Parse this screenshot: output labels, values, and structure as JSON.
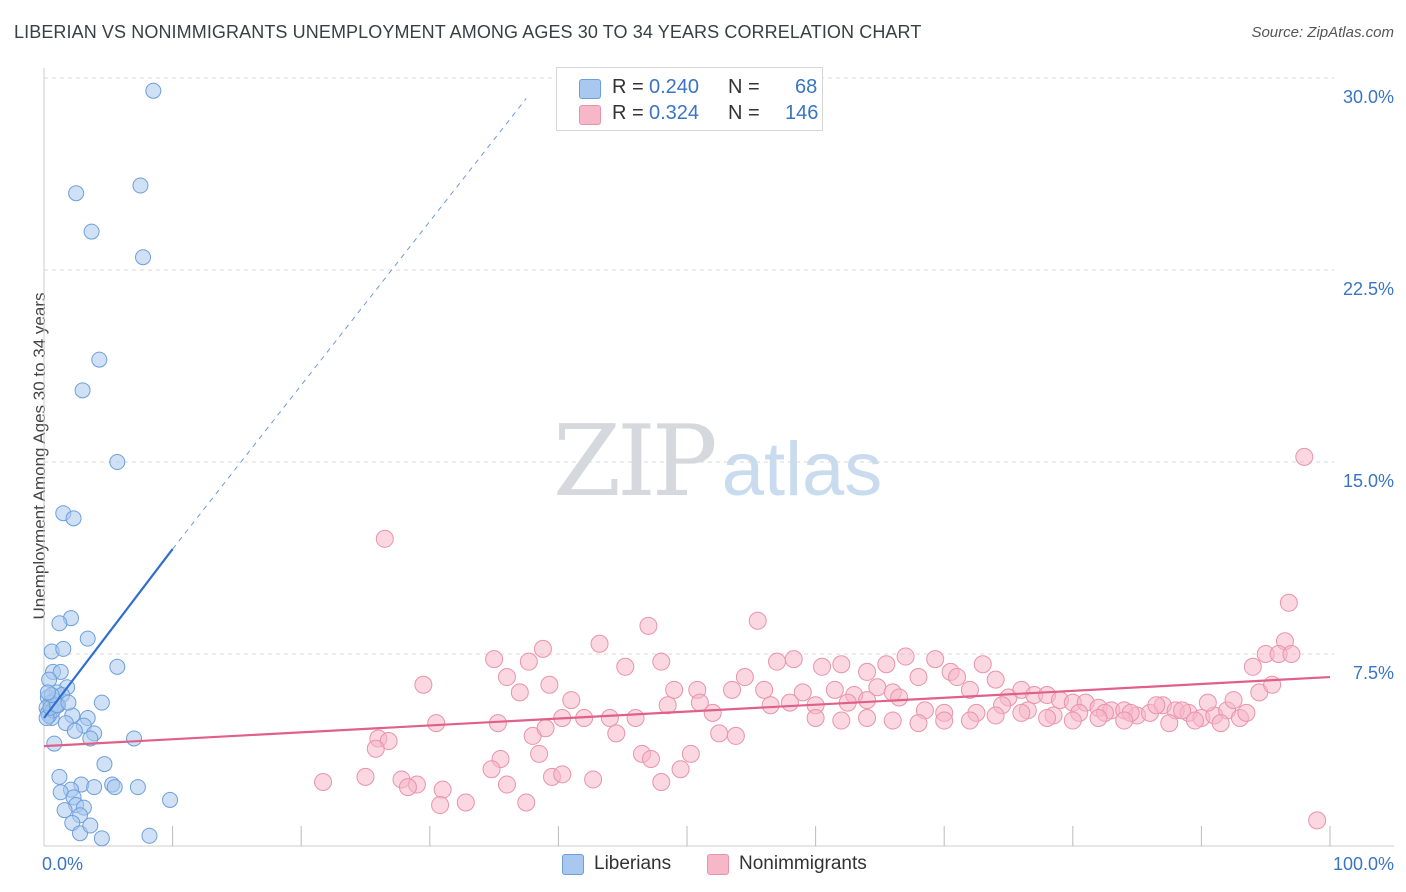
{
  "title": "LIBERIAN VS NONIMMIGRANTS UNEMPLOYMENT AMONG AGES 30 TO 34 YEARS CORRELATION CHART",
  "source": "Source: ZipAtlas.com",
  "watermark": {
    "zip": "ZIP",
    "atlas": "atlas"
  },
  "legend_top": [
    {
      "r_label": "R =",
      "r_value": "0.240",
      "n_label": "N =",
      "n_value": "68",
      "color": "#a9c8ef"
    },
    {
      "r_label": "R =",
      "r_value": "0.324",
      "n_label": "N =",
      "n_value": "146",
      "color": "#f6b7c9"
    }
  ],
  "legend_bottom": [
    {
      "label": "Liberians",
      "color": "#a9c8ef"
    },
    {
      "label": "Nonimmigrants",
      "color": "#f6b7c9"
    }
  ],
  "colors": {
    "blue_fill": "#a9c8ef",
    "blue_edge": "#6d9fdc",
    "blue_line": "#2f6fcf",
    "pink_fill": "#f6b7c9",
    "pink_edge": "#e993ad",
    "pink_line": "#e0608a",
    "value_text": "#3a74c4",
    "grid": "#d9d9d9"
  },
  "chart_data": {
    "type": "scatter",
    "title": "LIBERIAN VS NONIMMIGRANTS UNEMPLOYMENT AMONG AGES 30 TO 34 YEARS CORRELATION CHART",
    "xlabel": "",
    "ylabel": "Unemployment Among Ages 30 to 34 years",
    "xlim": [
      0,
      100
    ],
    "ylim": [
      0,
      30
    ],
    "x_tick_labels": [
      {
        "x": 0,
        "label": "0.0%"
      },
      {
        "x": 100,
        "label": "100.0%"
      }
    ],
    "y_ticks": [
      {
        "y": 7.5,
        "label": "7.5%"
      },
      {
        "y": 15,
        "label": "15.0%"
      },
      {
        "y": 22.5,
        "label": "22.5%"
      },
      {
        "y": 30,
        "label": "30.0%"
      }
    ],
    "x_minor_ticks": [
      10,
      20,
      30,
      40,
      50,
      60,
      70,
      80,
      90,
      100
    ],
    "grid": true,
    "legend_placement": "top-center and bottom",
    "series": [
      {
        "name": "Liberians",
        "r": 0.24,
        "n": 68,
        "trend": {
          "x0": 0.0,
          "y0": 5.0,
          "x1": 10.0,
          "y1": 11.6,
          "dashed_to_x": 37.5,
          "dashed_to_y": 29.2
        },
        "points": [
          [
            8.5,
            29.5
          ],
          [
            7.5,
            25.8
          ],
          [
            2.5,
            25.5
          ],
          [
            3.7,
            24.0
          ],
          [
            7.7,
            23.0
          ],
          [
            4.3,
            19.0
          ],
          [
            3.0,
            17.8
          ],
          [
            5.7,
            15.0
          ],
          [
            1.5,
            13.0
          ],
          [
            2.3,
            12.8
          ],
          [
            2.1,
            8.9
          ],
          [
            1.2,
            8.7
          ],
          [
            3.4,
            8.1
          ],
          [
            0.6,
            7.6
          ],
          [
            1.5,
            7.7
          ],
          [
            5.7,
            7.0
          ],
          [
            0.7,
            6.8
          ],
          [
            1.3,
            6.8
          ],
          [
            0.4,
            6.5
          ],
          [
            1.8,
            6.2
          ],
          [
            1.0,
            6.0
          ],
          [
            0.3,
            5.8
          ],
          [
            0.8,
            5.7
          ],
          [
            1.4,
            5.9
          ],
          [
            0.5,
            5.6
          ],
          [
            0.2,
            5.4
          ],
          [
            0.9,
            5.5
          ],
          [
            0.3,
            5.2
          ],
          [
            0.6,
            5.0
          ],
          [
            0.4,
            5.1
          ],
          [
            0.7,
            5.3
          ],
          [
            0.2,
            5.0
          ],
          [
            0.5,
            5.4
          ],
          [
            1.1,
            5.5
          ],
          [
            4.5,
            5.6
          ],
          [
            2.2,
            5.1
          ],
          [
            3.4,
            5.0
          ],
          [
            1.7,
            4.8
          ],
          [
            3.1,
            4.7
          ],
          [
            2.4,
            4.5
          ],
          [
            3.9,
            4.4
          ],
          [
            0.8,
            4.0
          ],
          [
            3.6,
            4.2
          ],
          [
            7.0,
            4.2
          ],
          [
            4.7,
            3.2
          ],
          [
            1.2,
            2.7
          ],
          [
            2.9,
            2.4
          ],
          [
            5.3,
            2.4
          ],
          [
            7.3,
            2.3
          ],
          [
            5.5,
            2.3
          ],
          [
            3.9,
            2.3
          ],
          [
            2.1,
            2.2
          ],
          [
            1.3,
            2.1
          ],
          [
            2.3,
            1.9
          ],
          [
            9.8,
            1.8
          ],
          [
            2.5,
            1.6
          ],
          [
            3.1,
            1.5
          ],
          [
            1.6,
            1.4
          ],
          [
            2.8,
            1.2
          ],
          [
            2.2,
            0.9
          ],
          [
            2.8,
            0.5
          ],
          [
            4.5,
            0.3
          ],
          [
            8.2,
            0.4
          ],
          [
            3.6,
            0.8
          ],
          [
            1.0,
            5.5
          ],
          [
            0.6,
            5.9
          ],
          [
            1.9,
            5.6
          ],
          [
            0.3,
            6.0
          ]
        ]
      },
      {
        "name": "Nonimmigrants",
        "r": 0.324,
        "n": 146,
        "trend": {
          "x0": 0.0,
          "y0": 3.9,
          "x1": 100.0,
          "y1": 6.6
        },
        "points": [
          [
            98.0,
            15.2
          ],
          [
            26.5,
            12.0
          ],
          [
            96.8,
            9.5
          ],
          [
            55.5,
            8.8
          ],
          [
            47.0,
            8.6
          ],
          [
            96.5,
            8.0
          ],
          [
            43.2,
            7.9
          ],
          [
            38.8,
            7.7
          ],
          [
            35.0,
            7.3
          ],
          [
            37.7,
            7.2
          ],
          [
            45.2,
            7.0
          ],
          [
            48.0,
            7.2
          ],
          [
            54.5,
            6.6
          ],
          [
            57.0,
            7.2
          ],
          [
            58.3,
            7.3
          ],
          [
            60.5,
            7.0
          ],
          [
            62.0,
            7.1
          ],
          [
            64.0,
            6.8
          ],
          [
            65.5,
            7.1
          ],
          [
            67.0,
            7.4
          ],
          [
            69.3,
            7.3
          ],
          [
            70.5,
            6.8
          ],
          [
            73.0,
            7.1
          ],
          [
            74.0,
            6.5
          ],
          [
            95.0,
            7.5
          ],
          [
            96.0,
            7.5
          ],
          [
            94.0,
            7.0
          ],
          [
            97.0,
            7.5
          ],
          [
            29.5,
            6.3
          ],
          [
            36.0,
            6.6
          ],
          [
            37.0,
            6.0
          ],
          [
            39.3,
            6.3
          ],
          [
            41.0,
            5.7
          ],
          [
            49.0,
            6.1
          ],
          [
            50.8,
            6.1
          ],
          [
            53.5,
            6.1
          ],
          [
            56.0,
            6.1
          ],
          [
            59.0,
            6.0
          ],
          [
            61.5,
            6.1
          ],
          [
            63.0,
            5.9
          ],
          [
            64.8,
            6.2
          ],
          [
            66.0,
            6.0
          ],
          [
            68.0,
            6.6
          ],
          [
            71.0,
            6.6
          ],
          [
            72.0,
            6.1
          ],
          [
            75.0,
            5.8
          ],
          [
            76.0,
            6.1
          ],
          [
            77.0,
            5.9
          ],
          [
            78.0,
            5.9
          ],
          [
            79.0,
            5.7
          ],
          [
            80.0,
            5.6
          ],
          [
            81.0,
            5.6
          ],
          [
            82.0,
            5.4
          ],
          [
            83.0,
            5.3
          ],
          [
            84.0,
            5.3
          ],
          [
            85.0,
            5.1
          ],
          [
            86.0,
            5.2
          ],
          [
            87.0,
            5.5
          ],
          [
            88.0,
            5.3
          ],
          [
            89.0,
            5.2
          ],
          [
            90.0,
            5.0
          ],
          [
            91.0,
            5.1
          ],
          [
            92.0,
            5.3
          ],
          [
            93.0,
            5.0
          ],
          [
            94.5,
            6.0
          ],
          [
            95.5,
            6.3
          ],
          [
            92.5,
            5.7
          ],
          [
            90.5,
            5.6
          ],
          [
            88.5,
            5.3
          ],
          [
            86.5,
            5.5
          ],
          [
            84.5,
            5.2
          ],
          [
            82.5,
            5.2
          ],
          [
            80.5,
            5.2
          ],
          [
            78.5,
            5.1
          ],
          [
            76.5,
            5.3
          ],
          [
            74.5,
            5.5
          ],
          [
            72.5,
            5.2
          ],
          [
            70.0,
            5.2
          ],
          [
            68.5,
            5.3
          ],
          [
            66.5,
            5.8
          ],
          [
            64.0,
            5.7
          ],
          [
            62.5,
            5.6
          ],
          [
            60.0,
            5.5
          ],
          [
            58.0,
            5.6
          ],
          [
            56.5,
            5.5
          ],
          [
            52.0,
            5.2
          ],
          [
            51.0,
            5.6
          ],
          [
            48.5,
            5.5
          ],
          [
            46.0,
            5.0
          ],
          [
            44.0,
            5.0
          ],
          [
            42.0,
            5.0
          ],
          [
            40.3,
            5.0
          ],
          [
            38.0,
            4.3
          ],
          [
            35.3,
            4.8
          ],
          [
            30.5,
            4.8
          ],
          [
            26.0,
            4.2
          ],
          [
            26.8,
            4.1
          ],
          [
            25.8,
            3.8
          ],
          [
            38.5,
            3.6
          ],
          [
            39.0,
            4.6
          ],
          [
            44.5,
            4.4
          ],
          [
            52.5,
            4.4
          ],
          [
            53.8,
            4.3
          ],
          [
            46.5,
            3.6
          ],
          [
            48.0,
            2.5
          ],
          [
            49.5,
            3.0
          ],
          [
            50.3,
            3.6
          ],
          [
            47.2,
            3.4
          ],
          [
            42.7,
            2.6
          ],
          [
            35.5,
            3.4
          ],
          [
            27.8,
            2.6
          ],
          [
            29.0,
            2.4
          ],
          [
            25.0,
            2.7
          ],
          [
            21.7,
            2.5
          ],
          [
            31.0,
            2.2
          ],
          [
            34.8,
            3.0
          ],
          [
            39.5,
            2.7
          ],
          [
            40.3,
            2.8
          ],
          [
            36.0,
            2.4
          ],
          [
            37.5,
            1.7
          ],
          [
            32.8,
            1.7
          ],
          [
            30.8,
            1.6
          ],
          [
            28.3,
            2.3
          ],
          [
            99.0,
            1.0
          ],
          [
            82.0,
            5.0
          ],
          [
            87.5,
            4.8
          ],
          [
            89.5,
            4.9
          ],
          [
            91.5,
            4.8
          ],
          [
            93.5,
            5.2
          ],
          [
            84.0,
            4.9
          ],
          [
            80.0,
            4.9
          ],
          [
            78.0,
            5.0
          ],
          [
            76.0,
            5.2
          ],
          [
            74.0,
            5.1
          ],
          [
            72.0,
            4.9
          ],
          [
            70.0,
            4.9
          ],
          [
            68.0,
            4.8
          ],
          [
            66.0,
            4.9
          ],
          [
            64.0,
            5.0
          ],
          [
            62.0,
            4.9
          ],
          [
            60.0,
            5.0
          ]
        ]
      }
    ]
  }
}
